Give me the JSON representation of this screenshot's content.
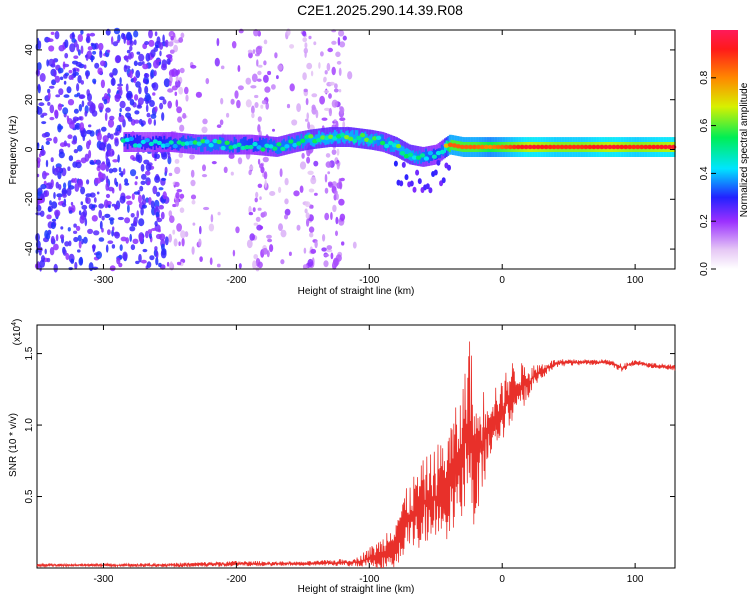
{
  "title": "C2E1.2025.290.14.39.R08",
  "chart_data": [
    {
      "type": "heatmap",
      "xlabel": "Height of straight line (km)",
      "ylabel": "Frequency (Hz)",
      "xlim": [
        -350,
        130
      ],
      "ylim": [
        -48,
        48
      ],
      "xticks": [
        -300,
        -200,
        -100,
        0,
        100
      ],
      "xtick_labels": [
        "-300",
        "-200",
        "-100",
        "0",
        "100"
      ],
      "yticks": [
        -40,
        -20,
        0,
        20,
        40
      ],
      "ytick_labels": [
        "-40",
        "-20",
        "0",
        "20",
        "40"
      ],
      "colorbar": {
        "label": "Normalized spectral amplitude",
        "range": [
          0.0,
          1.0
        ],
        "ticks": [
          0.0,
          0.2,
          0.4,
          0.6,
          0.8
        ],
        "tick_labels": [
          "0.0",
          "0.2",
          "0.4",
          "0.6",
          "0.8"
        ],
        "colormap": "rainbow (white → purple → blue → cyan → green → yellow → orange → red)"
      },
      "ridge": {
        "description": "dominant-frequency trace",
        "x": [
          -285,
          -270,
          -250,
          -230,
          -210,
          -190,
          -170,
          -155,
          -145,
          -130,
          -115,
          -100,
          -90,
          -80,
          -70,
          -60,
          -50,
          -45,
          -40,
          -30,
          -20,
          -10,
          0,
          20,
          40,
          60,
          80,
          100,
          130
        ],
        "frequency": [
          3,
          3,
          3,
          2,
          2,
          2,
          1,
          3,
          4,
          5,
          5,
          4,
          3,
          1,
          -2,
          -3,
          -2,
          0,
          2,
          1,
          1,
          1,
          1,
          1,
          1,
          1,
          1,
          1,
          1
        ],
        "amplitude": [
          0.45,
          0.4,
          0.45,
          0.5,
          0.5,
          0.45,
          0.5,
          0.5,
          0.55,
          0.55,
          0.55,
          0.55,
          0.5,
          0.55,
          0.55,
          0.5,
          0.45,
          0.5,
          0.85,
          0.85,
          0.85,
          0.8,
          0.85,
          0.95,
          0.9,
          0.9,
          0.95,
          0.9,
          0.95
        ]
      },
      "noise_region": {
        "x_from": -350,
        "x_to": -110,
        "description": "scattered low-amplitude purple speckle"
      }
    },
    {
      "type": "line",
      "xlabel": "Height of straight line (km)",
      "ylabel": "SNR (10 * v/v)",
      "scale_label": "(x10⁴)",
      "scale_base": "(x10",
      "scale_exp": "4",
      "scale_close": ")",
      "xlim": [
        -350,
        130
      ],
      "ylim": [
        0,
        1.7
      ],
      "xticks": [
        -300,
        -200,
        -100,
        0,
        100
      ],
      "xtick_labels": [
        "-300",
        "-200",
        "-100",
        "0",
        "100"
      ],
      "yticks": [
        0.5,
        1.0,
        1.5
      ],
      "ytick_labels": [
        "0.5",
        "1.0",
        "1.5"
      ],
      "series": [
        {
          "color": "#e8302a",
          "x": [
            -350,
            -300,
            -250,
            -200,
            -150,
            -110,
            -90,
            -80,
            -70,
            -60,
            -50,
            -40,
            -30,
            -25,
            -20,
            -15,
            -10,
            -5,
            0,
            5,
            10,
            20,
            30,
            40,
            60,
            80,
            90,
            100,
            110,
            130
          ],
          "y": [
            0.02,
            0.02,
            0.02,
            0.03,
            0.03,
            0.04,
            0.1,
            0.2,
            0.35,
            0.45,
            0.5,
            0.6,
            0.8,
            1.1,
            0.7,
            0.9,
            1.0,
            1.05,
            1.1,
            1.2,
            1.25,
            1.3,
            1.38,
            1.43,
            1.44,
            1.44,
            1.4,
            1.44,
            1.42,
            1.4
          ],
          "spread": [
            0.01,
            0.01,
            0.015,
            0.02,
            0.015,
            0.03,
            0.12,
            0.2,
            0.25,
            0.3,
            0.35,
            0.4,
            0.45,
            0.6,
            0.5,
            0.35,
            0.3,
            0.25,
            0.2,
            0.25,
            0.2,
            0.12,
            0.06,
            0.03,
            0.02,
            0.02,
            0.03,
            0.02,
            0.02,
            0.02
          ]
        }
      ]
    }
  ]
}
